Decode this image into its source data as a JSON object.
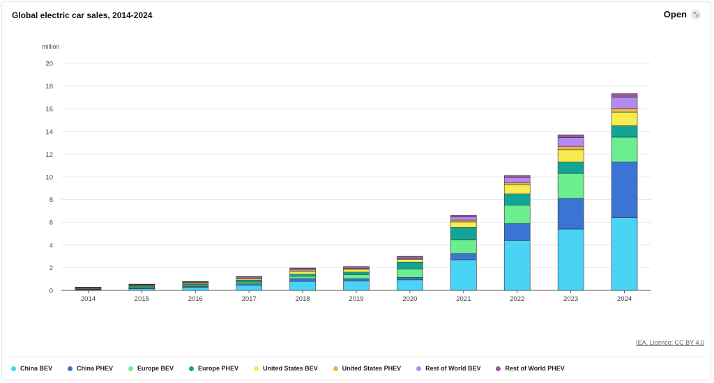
{
  "header": {
    "title": "Global electric car sales, 2014-2024",
    "open_label": "Open"
  },
  "credit": "IEA. Licence: CC BY 4.0",
  "chart_data": {
    "type": "bar",
    "stacked": true,
    "title": "Global electric car sales, 2014-2024",
    "ylabel": "million",
    "xlabel": "",
    "ylim": [
      0,
      20
    ],
    "yticks": [
      0,
      2,
      4,
      6,
      8,
      10,
      12,
      14,
      16,
      18,
      20
    ],
    "grid": true,
    "legend_position": "bottom",
    "categories": [
      "2014",
      "2015",
      "2016",
      "2017",
      "2018",
      "2019",
      "2020",
      "2021",
      "2022",
      "2023",
      "2024"
    ],
    "series": [
      {
        "name": "China BEV",
        "color": "#49d3f5",
        "values": [
          0.05,
          0.15,
          0.26,
          0.47,
          0.79,
          0.83,
          0.93,
          2.7,
          4.4,
          5.4,
          6.4
        ]
      },
      {
        "name": "China PHEV",
        "color": "#3b74d4",
        "values": [
          0.02,
          0.06,
          0.08,
          0.11,
          0.25,
          0.2,
          0.21,
          0.55,
          1.5,
          2.7,
          4.9
        ]
      },
      {
        "name": "Europe BEV",
        "color": "#6bee8f",
        "values": [
          0.04,
          0.09,
          0.1,
          0.15,
          0.2,
          0.36,
          0.75,
          1.2,
          1.6,
          2.2,
          2.2
        ]
      },
      {
        "name": "Europe PHEV",
        "color": "#12a596",
        "values": [
          0.04,
          0.09,
          0.12,
          0.18,
          0.19,
          0.22,
          0.6,
          1.1,
          1.0,
          1.0,
          1.0
        ]
      },
      {
        "name": "United States BEV",
        "color": "#f7ec4e",
        "values": [
          0.06,
          0.07,
          0.08,
          0.1,
          0.24,
          0.24,
          0.23,
          0.47,
          0.8,
          1.1,
          1.2
        ]
      },
      {
        "name": "United States PHEV",
        "color": "#eeb24d",
        "values": [
          0.05,
          0.04,
          0.07,
          0.09,
          0.12,
          0.08,
          0.07,
          0.17,
          0.19,
          0.29,
          0.33
        ]
      },
      {
        "name": "Rest of World BEV",
        "color": "#b28af0",
        "values": [
          0.02,
          0.03,
          0.05,
          0.08,
          0.12,
          0.12,
          0.15,
          0.28,
          0.47,
          0.78,
          1.0
        ]
      },
      {
        "name": "Rest of World PHEV",
        "color": "#9c559e",
        "values": [
          0.01,
          0.02,
          0.03,
          0.05,
          0.06,
          0.05,
          0.06,
          0.13,
          0.17,
          0.22,
          0.3
        ]
      }
    ]
  }
}
